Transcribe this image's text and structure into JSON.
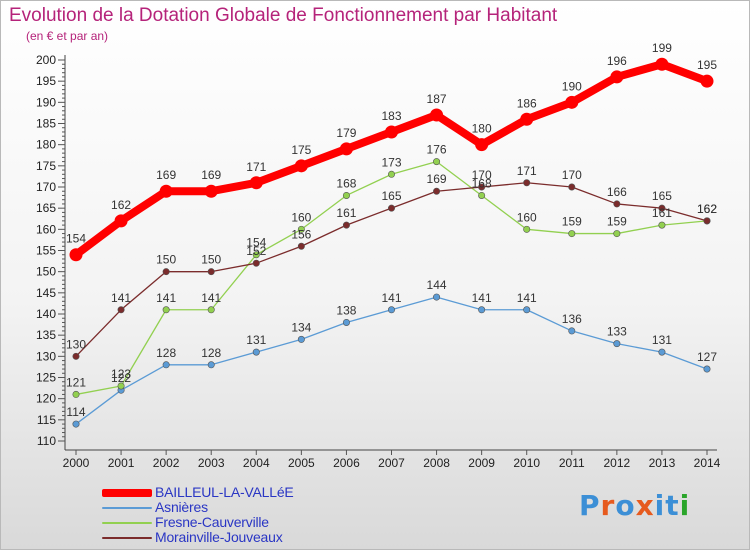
{
  "chart_data": {
    "type": "line",
    "title": "Evolution de la Dotation Globale de Fonctionnement par Habitant",
    "subtitle": "(en € et par an)",
    "xlabel": "",
    "ylabel": "",
    "ylim": [
      110,
      200
    ],
    "ytick_step": 5,
    "grid": false,
    "legend_position": "bottom-left",
    "x": [
      2000,
      2001,
      2002,
      2003,
      2004,
      2005,
      2006,
      2007,
      2008,
      2009,
      2010,
      2011,
      2012,
      2013,
      2014
    ],
    "series": [
      {
        "name": "BAILLEUL-LA-VALLéE",
        "color": "#ff0000",
        "values": [
          154,
          162,
          169,
          169,
          171,
          175,
          179,
          183,
          187,
          180,
          186,
          190,
          196,
          199,
          195
        ]
      },
      {
        "name": "Asnières",
        "color": "#5b9bd5",
        "values": [
          114,
          122,
          128,
          128,
          131,
          134,
          138,
          141,
          144,
          141,
          141,
          136,
          133,
          131,
          127
        ]
      },
      {
        "name": "Fresne-Cauverville",
        "color": "#92d050",
        "values": [
          121,
          123,
          141,
          141,
          154,
          160,
          168,
          173,
          176,
          168,
          160,
          159,
          159,
          161,
          162
        ]
      },
      {
        "name": "Morainville-Jouveaux",
        "color": "#7b2c2c",
        "values": [
          130,
          141,
          150,
          150,
          152,
          156,
          161,
          165,
          169,
          170,
          171,
          170,
          166,
          165,
          162
        ]
      }
    ]
  },
  "logo": {
    "text": "Proxiti",
    "letters": [
      "P",
      "r",
      "o",
      "x",
      "i",
      "t",
      "i"
    ],
    "colors": [
      "#3c8fd6",
      "#e65a1e",
      "#3c8fd6",
      "#e65a1e",
      "#3c8fd6",
      "#3c8fd6",
      "#2aa52a"
    ]
  }
}
